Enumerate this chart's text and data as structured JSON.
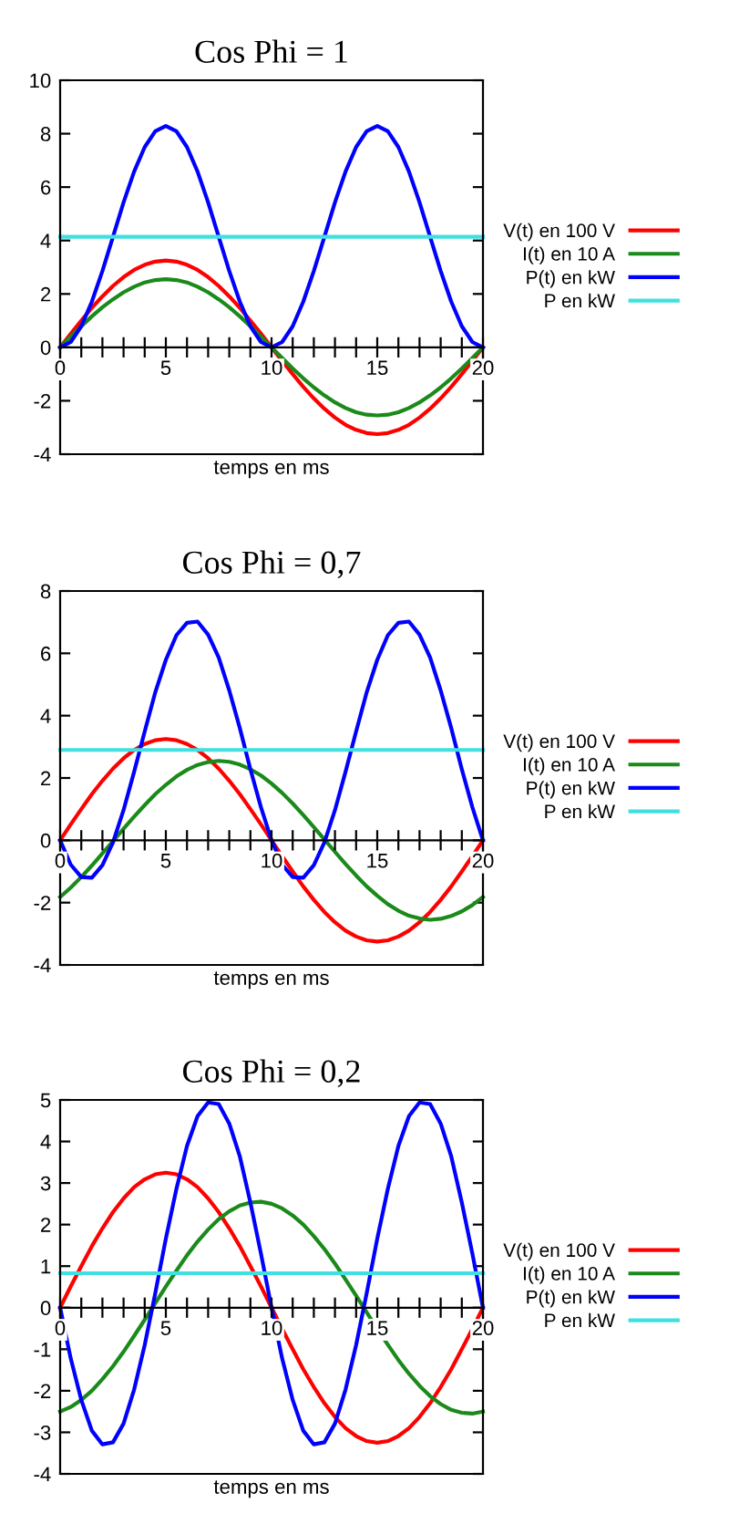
{
  "chart_data": [
    {
      "type": "line",
      "title": "Cos Phi = 1",
      "xlabel": "temps en ms",
      "xlim": [
        0,
        20
      ],
      "ylim": [
        -4,
        10
      ],
      "yticks": [
        -4,
        -2,
        0,
        2,
        4,
        6,
        8,
        10
      ],
      "xticks": [
        0,
        {
          "value": 1,
          "label": null
        },
        {
          "value": 2,
          "label": null
        },
        {
          "value": 3,
          "label": null
        },
        {
          "value": 4,
          "label": null
        },
        5,
        {
          "value": 6,
          "label": null
        },
        {
          "value": 7,
          "label": null
        },
        {
          "value": 8,
          "label": null
        },
        {
          "value": 9,
          "label": null
        },
        10,
        {
          "value": 11,
          "label": null
        },
        {
          "value": 12,
          "label": null
        },
        {
          "value": 13,
          "label": null
        },
        {
          "value": 14,
          "label": null
        },
        15,
        {
          "value": 16,
          "label": null
        },
        {
          "value": 17,
          "label": null
        },
        {
          "value": 18,
          "label": null
        },
        {
          "value": 19,
          "label": null
        },
        20
      ],
      "grid": false,
      "legend": "right",
      "marker": "none",
      "line_style": "solid",
      "x": [
        0,
        0.5,
        1,
        1.5,
        2,
        2.5,
        3,
        3.5,
        4,
        4.5,
        5,
        5.5,
        6,
        6.5,
        7,
        7.5,
        8,
        8.5,
        9,
        9.5,
        10,
        10.5,
        11,
        11.5,
        12,
        12.5,
        13,
        13.5,
        14,
        14.5,
        15,
        15.5,
        16,
        16.5,
        17,
        17.5,
        18,
        18.5,
        19,
        19.5,
        20
      ],
      "series": [
        {
          "name": "V(t) en 100 V",
          "color": "#ff0000",
          "values": [
            0,
            0.51,
            1.0,
            1.48,
            1.91,
            2.3,
            2.63,
            2.9,
            3.09,
            3.21,
            3.25,
            3.21,
            3.09,
            2.9,
            2.63,
            2.3,
            1.91,
            1.48,
            1.0,
            0.51,
            0,
            -0.51,
            -1.0,
            -1.48,
            -1.91,
            -2.3,
            -2.63,
            -2.9,
            -3.09,
            -3.21,
            -3.25,
            -3.21,
            -3.09,
            -2.9,
            -2.63,
            -2.3,
            -1.91,
            -1.48,
            -1.0,
            -0.51,
            0
          ]
        },
        {
          "name": "I(t) en 10 A",
          "color": "#1a8a1a",
          "values": [
            0,
            0.4,
            0.79,
            1.16,
            1.5,
            1.8,
            2.06,
            2.27,
            2.43,
            2.52,
            2.55,
            2.52,
            2.43,
            2.27,
            2.06,
            1.8,
            1.5,
            1.16,
            0.79,
            0.4,
            0,
            -0.4,
            -0.79,
            -1.16,
            -1.5,
            -1.8,
            -2.06,
            -2.27,
            -2.43,
            -2.52,
            -2.55,
            -2.52,
            -2.43,
            -2.27,
            -2.06,
            -1.8,
            -1.5,
            -1.16,
            -0.79,
            -0.4,
            0
          ]
        },
        {
          "name": "P(t) en kW",
          "color": "#0000ff",
          "values": [
            0,
            0.2,
            0.79,
            1.71,
            2.86,
            4.14,
            5.43,
            6.58,
            7.5,
            8.09,
            8.29,
            8.09,
            7.5,
            6.58,
            5.43,
            4.14,
            2.86,
            1.71,
            0.79,
            0.2,
            0,
            0.2,
            0.79,
            1.71,
            2.86,
            4.14,
            5.43,
            6.58,
            7.5,
            8.09,
            8.29,
            8.09,
            7.5,
            6.58,
            5.43,
            4.14,
            2.86,
            1.71,
            0.79,
            0.2,
            0
          ]
        },
        {
          "name": "P en kW",
          "color": "#40e0e0",
          "values": [
            4.14,
            4.14,
            4.14,
            4.14,
            4.14,
            4.14,
            4.14,
            4.14,
            4.14,
            4.14,
            4.14,
            4.14,
            4.14,
            4.14,
            4.14,
            4.14,
            4.14,
            4.14,
            4.14,
            4.14,
            4.14,
            4.14,
            4.14,
            4.14,
            4.14,
            4.14,
            4.14,
            4.14,
            4.14,
            4.14,
            4.14,
            4.14,
            4.14,
            4.14,
            4.14,
            4.14,
            4.14,
            4.14,
            4.14,
            4.14,
            4.14
          ]
        }
      ]
    },
    {
      "type": "line",
      "title": "Cos Phi = 0,7",
      "xlabel": "temps en ms",
      "xlim": [
        0,
        20
      ],
      "ylim": [
        -4,
        8
      ],
      "yticks": [
        -4,
        -2,
        0,
        2,
        4,
        6,
        8
      ],
      "xticks": [
        0,
        {
          "value": 1,
          "label": null
        },
        {
          "value": 2,
          "label": null
        },
        {
          "value": 3,
          "label": null
        },
        {
          "value": 4,
          "label": null
        },
        5,
        {
          "value": 6,
          "label": null
        },
        {
          "value": 7,
          "label": null
        },
        {
          "value": 8,
          "label": null
        },
        {
          "value": 9,
          "label": null
        },
        10,
        {
          "value": 11,
          "label": null
        },
        {
          "value": 12,
          "label": null
        },
        {
          "value": 13,
          "label": null
        },
        {
          "value": 14,
          "label": null
        },
        15,
        {
          "value": 16,
          "label": null
        },
        {
          "value": 17,
          "label": null
        },
        {
          "value": 18,
          "label": null
        },
        {
          "value": 19,
          "label": null
        },
        20
      ],
      "grid": false,
      "legend": "right",
      "marker": "none",
      "line_style": "solid",
      "x": [
        0,
        0.5,
        1,
        1.5,
        2,
        2.5,
        3,
        3.5,
        4,
        4.5,
        5,
        5.5,
        6,
        6.5,
        7,
        7.5,
        8,
        8.5,
        9,
        9.5,
        10,
        10.5,
        11,
        11.5,
        12,
        12.5,
        13,
        13.5,
        14,
        14.5,
        15,
        15.5,
        16,
        16.5,
        17,
        17.5,
        18,
        18.5,
        19,
        19.5,
        20
      ],
      "series": [
        {
          "name": "V(t) en 100 V",
          "color": "#ff0000",
          "values": [
            0,
            0.51,
            1.0,
            1.48,
            1.91,
            2.3,
            2.63,
            2.9,
            3.09,
            3.21,
            3.25,
            3.21,
            3.09,
            2.9,
            2.63,
            2.3,
            1.91,
            1.48,
            1.0,
            0.51,
            0,
            -0.51,
            -1.0,
            -1.48,
            -1.91,
            -2.3,
            -2.63,
            -2.9,
            -3.09,
            -3.21,
            -3.25,
            -3.21,
            -3.09,
            -2.9,
            -2.63,
            -2.3,
            -1.91,
            -1.48,
            -1.0,
            -0.51,
            0
          ]
        },
        {
          "name": "I(t) en 10 A",
          "color": "#1a8a1a",
          "values": [
            -1.82,
            -1.52,
            -1.18,
            -0.81,
            -0.42,
            -0.03,
            0.37,
            0.76,
            1.13,
            1.48,
            1.78,
            2.05,
            2.26,
            2.42,
            2.51,
            2.55,
            2.52,
            2.43,
            2.28,
            2.08,
            1.82,
            1.52,
            1.18,
            0.81,
            0.42,
            0.03,
            -0.37,
            -0.76,
            -1.13,
            -1.48,
            -1.78,
            -2.05,
            -2.26,
            -2.42,
            -2.51,
            -2.55,
            -2.52,
            -2.43,
            -2.28,
            -2.08,
            -1.82
          ]
        },
        {
          "name": "P(t) en kW",
          "color": "#0000ff",
          "values": [
            0,
            -0.78,
            -1.18,
            -1.2,
            -0.8,
            -0.07,
            0.97,
            2.2,
            3.49,
            4.75,
            5.79,
            6.58,
            6.98,
            7.02,
            6.6,
            5.87,
            4.81,
            3.6,
            2.28,
            1.06,
            0,
            -0.78,
            -1.18,
            -1.2,
            -0.8,
            -0.07,
            0.97,
            2.2,
            3.49,
            4.75,
            5.79,
            6.58,
            6.98,
            7.02,
            6.6,
            5.87,
            4.81,
            3.6,
            2.28,
            1.06,
            0
          ]
        },
        {
          "name": "P en kW",
          "color": "#40e0e0",
          "values": [
            2.9,
            2.9,
            2.9,
            2.9,
            2.9,
            2.9,
            2.9,
            2.9,
            2.9,
            2.9,
            2.9,
            2.9,
            2.9,
            2.9,
            2.9,
            2.9,
            2.9,
            2.9,
            2.9,
            2.9,
            2.9,
            2.9,
            2.9,
            2.9,
            2.9,
            2.9,
            2.9,
            2.9,
            2.9,
            2.9,
            2.9,
            2.9,
            2.9,
            2.9,
            2.9,
            2.9,
            2.9,
            2.9,
            2.9,
            2.9,
            2.9
          ]
        }
      ]
    },
    {
      "type": "line",
      "title": "Cos Phi = 0,2",
      "xlabel": "temps en ms",
      "xlim": [
        0,
        20
      ],
      "ylim": [
        -4,
        5
      ],
      "yticks": [
        -4,
        -3,
        -2,
        -1,
        0,
        1,
        2,
        3,
        4,
        5
      ],
      "xticks": [
        0,
        {
          "value": 1,
          "label": null
        },
        {
          "value": 2,
          "label": null
        },
        {
          "value": 3,
          "label": null
        },
        {
          "value": 4,
          "label": null
        },
        5,
        {
          "value": 6,
          "label": null
        },
        {
          "value": 7,
          "label": null
        },
        {
          "value": 8,
          "label": null
        },
        {
          "value": 9,
          "label": null
        },
        10,
        {
          "value": 11,
          "label": null
        },
        {
          "value": 12,
          "label": null
        },
        {
          "value": 13,
          "label": null
        },
        {
          "value": 14,
          "label": null
        },
        15,
        {
          "value": 16,
          "label": null
        },
        {
          "value": 17,
          "label": null
        },
        {
          "value": 18,
          "label": null
        },
        {
          "value": 19,
          "label": null
        },
        20
      ],
      "grid": false,
      "legend": "right",
      "marker": "none",
      "line_style": "solid",
      "x": [
        0,
        0.5,
        1,
        1.5,
        2,
        2.5,
        3,
        3.5,
        4,
        4.5,
        5,
        5.5,
        6,
        6.5,
        7,
        7.5,
        8,
        8.5,
        9,
        9.5,
        10,
        10.5,
        11,
        11.5,
        12,
        12.5,
        13,
        13.5,
        14,
        14.5,
        15,
        15.5,
        16,
        16.5,
        17,
        17.5,
        18,
        18.5,
        19,
        19.5,
        20
      ],
      "series": [
        {
          "name": "V(t) en 100 V",
          "color": "#ff0000",
          "values": [
            0,
            0.51,
            1.0,
            1.48,
            1.91,
            2.3,
            2.63,
            2.9,
            3.09,
            3.21,
            3.25,
            3.21,
            3.09,
            2.9,
            2.63,
            2.3,
            1.91,
            1.48,
            1.0,
            0.51,
            0,
            -0.51,
            -1.0,
            -1.48,
            -1.91,
            -2.3,
            -2.63,
            -2.9,
            -3.09,
            -3.21,
            -3.25,
            -3.21,
            -3.09,
            -2.9,
            -2.63,
            -2.3,
            -1.91,
            -1.48,
            -1.0,
            -0.51,
            0
          ]
        },
        {
          "name": "I(t) en 10 A",
          "color": "#1a8a1a",
          "values": [
            -2.5,
            -2.39,
            -2.22,
            -2.0,
            -1.72,
            -1.41,
            -1.06,
            -0.68,
            -0.29,
            0.11,
            0.51,
            0.89,
            1.26,
            1.59,
            1.88,
            2.13,
            2.32,
            2.46,
            2.53,
            2.55,
            2.5,
            2.39,
            2.22,
            2.0,
            1.72,
            1.41,
            1.06,
            0.68,
            0.29,
            -0.11,
            -0.51,
            -0.89,
            -1.26,
            -1.59,
            -1.88,
            -2.13,
            -2.32,
            -2.46,
            -2.53,
            -2.55,
            -2.5
          ]
        },
        {
          "name": "P(t) en kW",
          "color": "#0000ff",
          "values": [
            0,
            -1.22,
            -2.22,
            -2.96,
            -3.29,
            -3.24,
            -2.79,
            -1.97,
            -0.9,
            0.35,
            1.66,
            2.86,
            3.89,
            4.61,
            4.94,
            4.9,
            4.43,
            3.64,
            2.53,
            1.3,
            0,
            -1.22,
            -2.22,
            -2.96,
            -3.29,
            -3.24,
            -2.79,
            -1.97,
            -0.9,
            0.35,
            1.66,
            2.86,
            3.89,
            4.61,
            4.94,
            4.9,
            4.43,
            3.64,
            2.53,
            1.3,
            0
          ]
        },
        {
          "name": "P en kW",
          "color": "#40e0e0",
          "values": [
            0.83,
            0.83,
            0.83,
            0.83,
            0.83,
            0.83,
            0.83,
            0.83,
            0.83,
            0.83,
            0.83,
            0.83,
            0.83,
            0.83,
            0.83,
            0.83,
            0.83,
            0.83,
            0.83,
            0.83,
            0.83,
            0.83,
            0.83,
            0.83,
            0.83,
            0.83,
            0.83,
            0.83,
            0.83,
            0.83,
            0.83,
            0.83,
            0.83,
            0.83,
            0.83,
            0.83,
            0.83,
            0.83,
            0.83,
            0.83,
            0.83
          ]
        }
      ]
    }
  ]
}
